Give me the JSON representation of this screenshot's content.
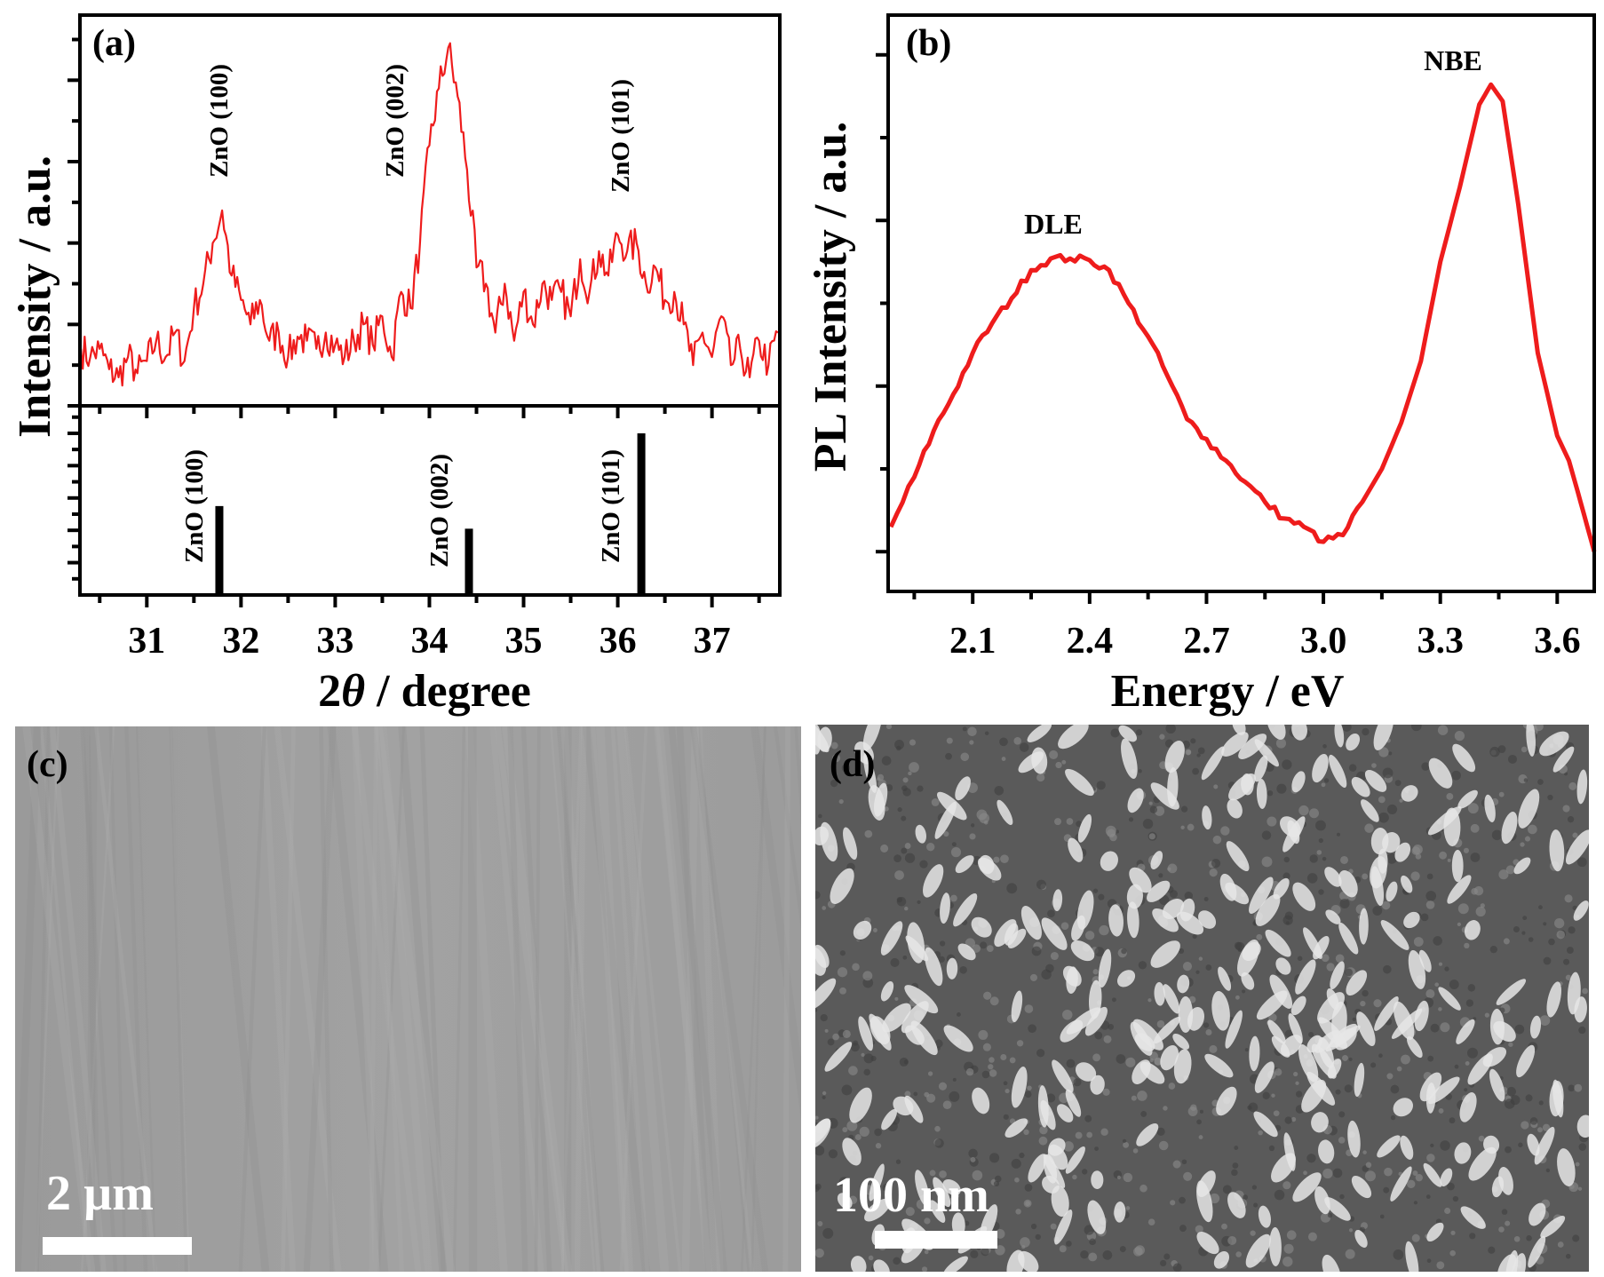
{
  "figure": {
    "panels": {
      "a": "(a)",
      "b": "(b)",
      "c": "(c)",
      "d": "(d)"
    },
    "sem_c": {
      "scale_bar": "2 µm",
      "background": "#9c9c9c"
    },
    "sem_d": {
      "scale_bar": "100 nm",
      "background": "#5a5a5a",
      "grain_color": "#e6e6e6"
    }
  },
  "chart_data": [
    {
      "panel": "a",
      "type": "line",
      "title": "",
      "xlabel_prefix": "2",
      "xlabel_symbol": "θ",
      "xlabel_suffix": " / degree",
      "ylabel": "Intensity / a.u.",
      "xlim": [
        30.29,
        37.72
      ],
      "xticks": [
        31,
        32,
        33,
        34,
        35,
        36,
        37
      ],
      "xtick_labels": [
        "31",
        "32",
        "33",
        "34",
        "35",
        "36",
        "37"
      ],
      "color": "#ee1c1c",
      "upper": {
        "ylim": [
          0,
          4.8
        ],
        "x": [
          30.3,
          30.4,
          30.5,
          30.6,
          30.7,
          30.8,
          30.9,
          31.0,
          31.1,
          31.2,
          31.3,
          31.4,
          31.5,
          31.6,
          31.7,
          31.8,
          31.9,
          32.0,
          32.1,
          32.2,
          32.3,
          32.4,
          32.5,
          32.6,
          32.7,
          32.8,
          32.9,
          33.0,
          33.1,
          33.2,
          33.3,
          33.4,
          33.5,
          33.6,
          33.7,
          33.8,
          33.9,
          34.0,
          34.1,
          34.2,
          34.3,
          34.4,
          34.5,
          34.6,
          34.7,
          34.8,
          34.9,
          35.0,
          35.1,
          35.2,
          35.3,
          35.4,
          35.5,
          35.6,
          35.7,
          35.8,
          35.9,
          36.0,
          36.1,
          36.2,
          36.3,
          36.4,
          36.5,
          36.6,
          36.7,
          36.8,
          36.9,
          37.0,
          37.1,
          37.2,
          37.3,
          37.4,
          37.5,
          37.6,
          37.7
        ],
        "y": [
          0.7,
          0.6,
          0.7,
          0.45,
          0.35,
          0.6,
          0.4,
          0.55,
          0.8,
          0.6,
          0.9,
          0.55,
          1.2,
          1.5,
          2.0,
          2.4,
          1.6,
          1.3,
          1.0,
          1.3,
          0.8,
          0.9,
          0.6,
          0.85,
          0.8,
          0.7,
          0.9,
          0.75,
          0.6,
          0.8,
          1.0,
          0.75,
          1.1,
          0.6,
          1.4,
          1.2,
          2.0,
          3.2,
          3.9,
          4.4,
          3.8,
          2.9,
          1.7,
          1.5,
          0.9,
          1.5,
          0.8,
          1.4,
          1.0,
          1.5,
          1.3,
          1.4,
          1.1,
          1.8,
          1.4,
          1.9,
          1.6,
          2.1,
          1.9,
          2.0,
          1.5,
          1.7,
          1.3,
          1.4,
          1.0,
          0.5,
          0.9,
          0.6,
          1.1,
          0.5,
          0.7,
          0.35,
          0.8,
          0.5,
          0.9
        ],
        "annotations": [
          {
            "text": "ZnO (100)",
            "x": 31.75
          },
          {
            "text": "ZnO (002)",
            "x": 33.8
          },
          {
            "text": "ZnO (101)",
            "x": 36.05
          }
        ]
      },
      "reference": {
        "type": "bar",
        "ylim": [
          0,
          117
        ],
        "positions": [
          31.77,
          34.42,
          36.25
        ],
        "intensities": [
          55,
          41,
          100
        ],
        "labels": [
          "ZnO (100)",
          "ZnO (002)",
          "ZnO (101)"
        ],
        "color": "#000000"
      }
    },
    {
      "panel": "b",
      "type": "line",
      "title": "",
      "xlabel": "Energy / eV",
      "ylabel": "PL Intensity / a.u.",
      "xlim": [
        1.883,
        3.695
      ],
      "ylim": [
        -0.24,
        3.24
      ],
      "xticks": [
        2.1,
        2.4,
        2.7,
        3.0,
        3.3,
        3.6
      ],
      "xtick_labels": [
        "2.1",
        "2.4",
        "2.7",
        "3.0",
        "3.3",
        "3.6"
      ],
      "color": "#ee1c1c",
      "x": [
        1.89,
        1.95,
        2.0,
        2.05,
        2.1,
        2.15,
        2.2,
        2.25,
        2.3,
        2.35,
        2.4,
        2.45,
        2.5,
        2.55,
        2.6,
        2.65,
        2.7,
        2.75,
        2.8,
        2.85,
        2.9,
        2.95,
        3.0,
        3.05,
        3.1,
        3.15,
        3.2,
        3.25,
        3.3,
        3.35,
        3.4,
        3.43,
        3.46,
        3.5,
        3.55,
        3.6,
        3.63,
        3.66,
        3.695
      ],
      "y": [
        0.15,
        0.45,
        0.73,
        0.95,
        1.2,
        1.38,
        1.53,
        1.7,
        1.77,
        1.77,
        1.76,
        1.7,
        1.5,
        1.3,
        1.06,
        0.8,
        0.68,
        0.55,
        0.42,
        0.3,
        0.2,
        0.15,
        0.06,
        0.1,
        0.3,
        0.5,
        0.78,
        1.15,
        1.75,
        2.2,
        2.7,
        2.82,
        2.72,
        2.1,
        1.2,
        0.7,
        0.55,
        0.3,
        0.0
      ],
      "annotations": [
        {
          "text": "DLE",
          "x": 2.33
        },
        {
          "text": "NBE",
          "x": 3.43
        }
      ]
    }
  ]
}
